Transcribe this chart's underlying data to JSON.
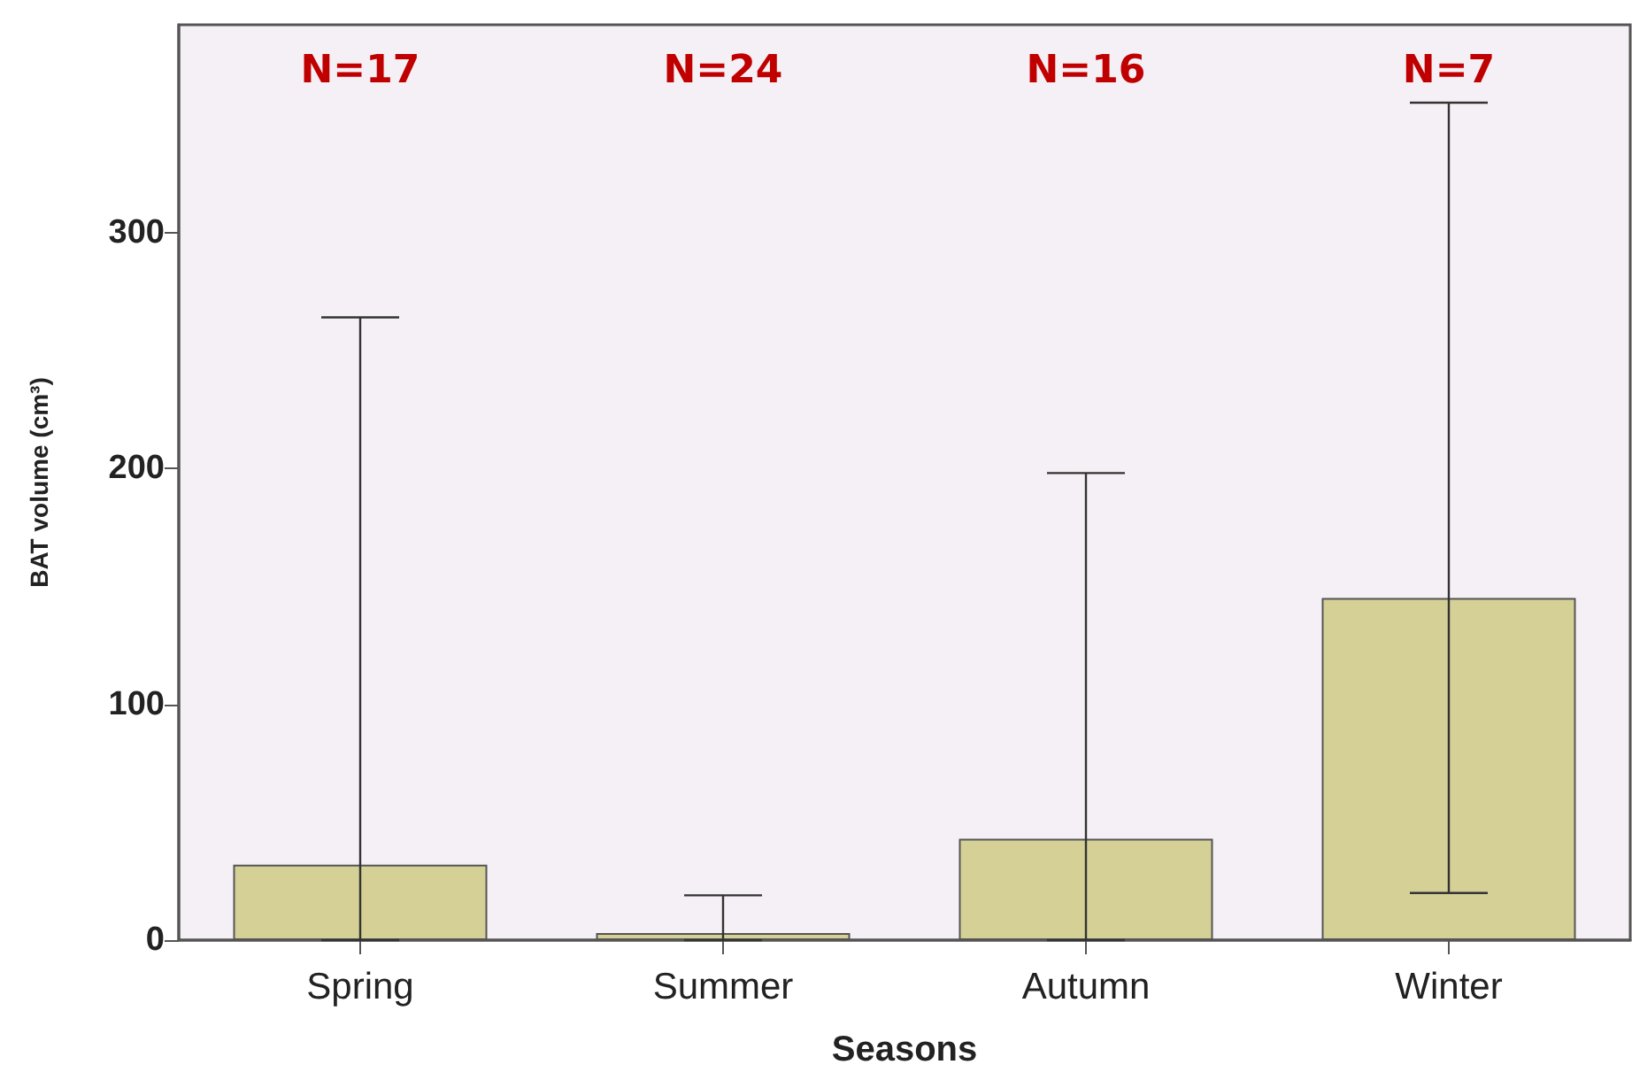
{
  "chart_data": {
    "type": "bar",
    "xlabel": "Seasons",
    "ylabel": "BAT volume (cm³)",
    "categories": [
      "Spring",
      "Summer",
      "Autumn",
      "Winter"
    ],
    "values": [
      32,
      3,
      43,
      145
    ],
    "errors": [
      [
        0,
        264
      ],
      [
        0,
        19
      ],
      [
        0,
        198
      ],
      [
        20,
        355
      ]
    ],
    "color": "#d4d096",
    "ylim": [
      0,
      388
    ],
    "yticks": [
      0,
      100,
      200,
      300
    ],
    "grid": false,
    "annotations": [
      "N=17",
      "N=24",
      "N=16",
      "N=7"
    ]
  }
}
